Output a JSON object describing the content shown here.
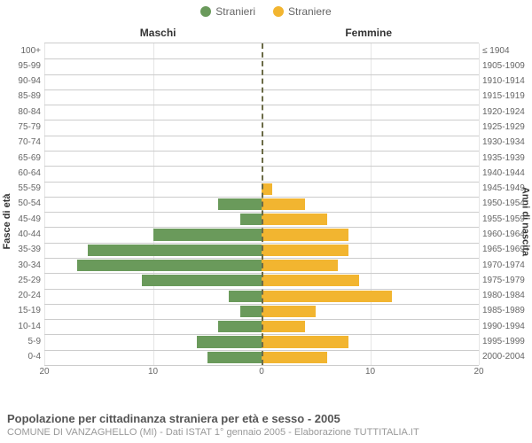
{
  "legend": {
    "male_label": "Stranieri",
    "female_label": "Straniere",
    "male_color": "#6a9a5b",
    "female_color": "#f2b530"
  },
  "headers": {
    "male": "Maschi",
    "female": "Femmine"
  },
  "axis_titles": {
    "left": "Fasce di età",
    "right": "Anni di nascita"
  },
  "chart": {
    "xmax": 20,
    "x_ticks": [
      20,
      10,
      0,
      10,
      20
    ],
    "grid_color": "#cccccc",
    "center_line_color": "#6b6b47",
    "background_color": "#ffffff",
    "label_fontsize": 10,
    "header_fontsize": 12,
    "rows": [
      {
        "age": "100+",
        "birth": "≤ 1904",
        "m": 0,
        "f": 0
      },
      {
        "age": "95-99",
        "birth": "1905-1909",
        "m": 0,
        "f": 0
      },
      {
        "age": "90-94",
        "birth": "1910-1914",
        "m": 0,
        "f": 0
      },
      {
        "age": "85-89",
        "birth": "1915-1919",
        "m": 0,
        "f": 0
      },
      {
        "age": "80-84",
        "birth": "1920-1924",
        "m": 0,
        "f": 0
      },
      {
        "age": "75-79",
        "birth": "1925-1929",
        "m": 0,
        "f": 0
      },
      {
        "age": "70-74",
        "birth": "1930-1934",
        "m": 0,
        "f": 0
      },
      {
        "age": "65-69",
        "birth": "1935-1939",
        "m": 0,
        "f": 0
      },
      {
        "age": "60-64",
        "birth": "1940-1944",
        "m": 0,
        "f": 0
      },
      {
        "age": "55-59",
        "birth": "1945-1949",
        "m": 0,
        "f": 1
      },
      {
        "age": "50-54",
        "birth": "1950-1954",
        "m": 4,
        "f": 4
      },
      {
        "age": "45-49",
        "birth": "1955-1959",
        "m": 2,
        "f": 6
      },
      {
        "age": "40-44",
        "birth": "1960-1964",
        "m": 10,
        "f": 8
      },
      {
        "age": "35-39",
        "birth": "1965-1969",
        "m": 16,
        "f": 8
      },
      {
        "age": "30-34",
        "birth": "1970-1974",
        "m": 17,
        "f": 7
      },
      {
        "age": "25-29",
        "birth": "1975-1979",
        "m": 11,
        "f": 9
      },
      {
        "age": "20-24",
        "birth": "1980-1984",
        "m": 3,
        "f": 12
      },
      {
        "age": "15-19",
        "birth": "1985-1989",
        "m": 2,
        "f": 5
      },
      {
        "age": "10-14",
        "birth": "1990-1994",
        "m": 4,
        "f": 4
      },
      {
        "age": "5-9",
        "birth": "1995-1999",
        "m": 6,
        "f": 8
      },
      {
        "age": "0-4",
        "birth": "2000-2004",
        "m": 5,
        "f": 6
      }
    ]
  },
  "footer": {
    "title": "Popolazione per cittadinanza straniera per età e sesso - 2005",
    "subtitle": "COMUNE DI VANZAGHELLO (MI) - Dati ISTAT 1° gennaio 2005 - Elaborazione TUTTITALIA.IT"
  }
}
